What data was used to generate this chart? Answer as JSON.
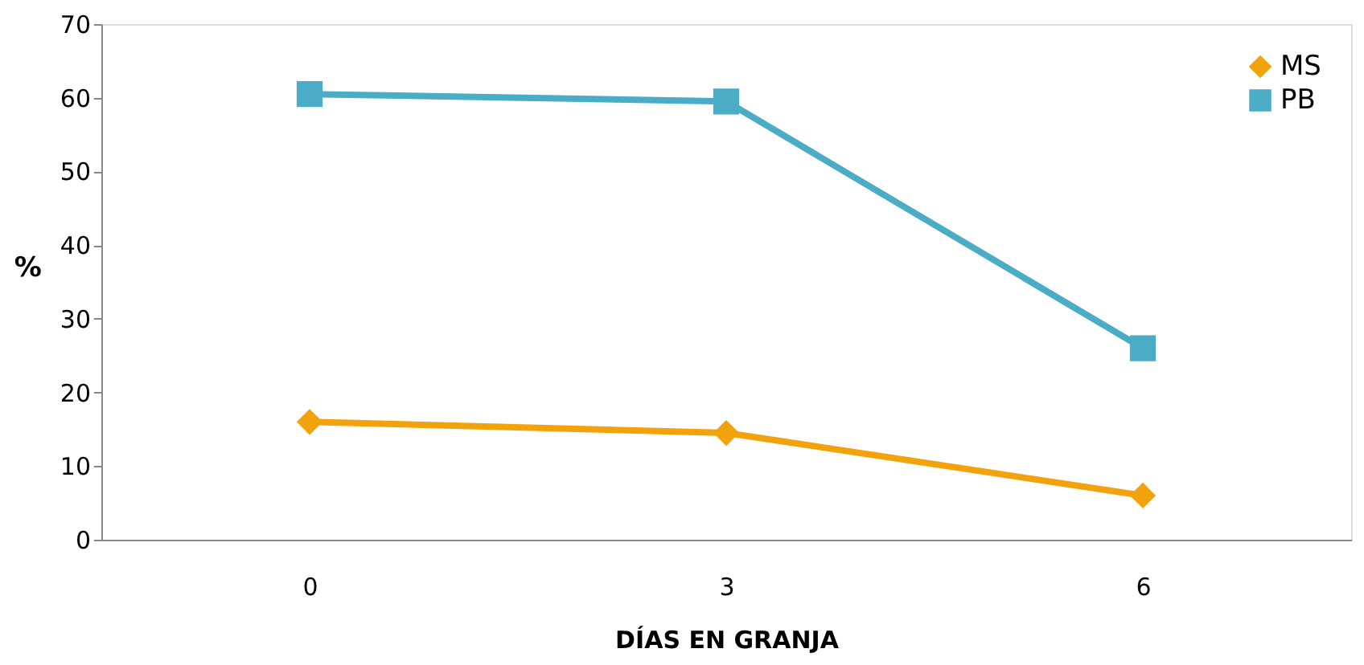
{
  "chart_data": {
    "type": "line",
    "xlabel": "DÍAS EN GRANJA",
    "ylabel": "%",
    "categories": [
      "0",
      "3",
      "6"
    ],
    "series": [
      {
        "name": "MS",
        "color": "#f2a20c",
        "marker": "diamond",
        "values": [
          16,
          14.5,
          6
        ]
      },
      {
        "name": "PB",
        "color": "#4bacc6",
        "marker": "square",
        "values": [
          60.5,
          59.5,
          26
        ]
      }
    ],
    "ylim": [
      0,
      70
    ],
    "yticks": [
      0,
      10,
      20,
      30,
      40,
      50,
      60,
      70
    ],
    "grid": false,
    "legend": "top right",
    "line_style": "solid"
  }
}
